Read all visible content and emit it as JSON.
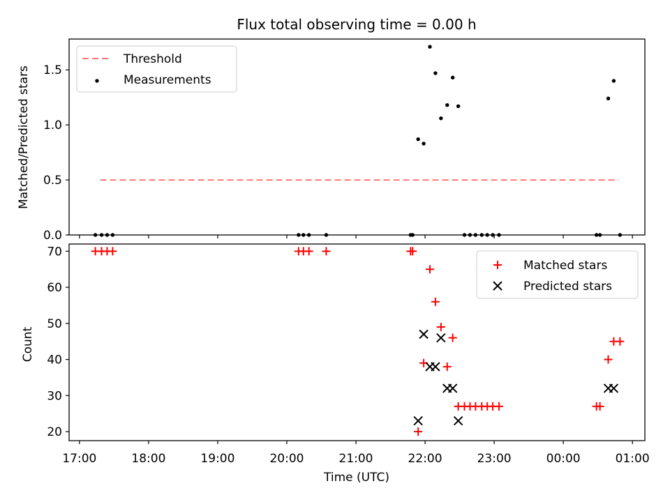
{
  "chart_data": [
    {
      "type": "scatter",
      "title": "Flux total observing time = 0.00 h",
      "xlabel": "",
      "ylabel": "Matched/Predicted stars",
      "ylim": [
        0,
        1.78
      ],
      "yticks": [
        "0.0",
        "0.5",
        "1.0",
        "1.5"
      ],
      "ytick_values": [
        0,
        0.5,
        1.0,
        1.5
      ],
      "legend_position": "top-left",
      "threshold": {
        "name": "Threshold",
        "value": 0.5,
        "x_start": 17.3,
        "x_end": 24.8,
        "color": "#ff7777"
      },
      "series": [
        {
          "name": "Measurements",
          "color": "#000000",
          "x": [
            17.23,
            17.32,
            17.4,
            17.48,
            20.17,
            20.24,
            20.32,
            20.57,
            21.79,
            21.82,
            21.9,
            21.98,
            22.07,
            22.15,
            22.23,
            22.32,
            22.4,
            22.48,
            22.57,
            22.65,
            22.73,
            22.82,
            22.9,
            22.98,
            23.07,
            24.48,
            24.53,
            24.65,
            24.73,
            24.82
          ],
          "y": [
            0,
            0,
            0,
            0,
            0,
            0,
            0,
            0,
            0,
            0,
            0.87,
            0.83,
            1.71,
            1.47,
            1.06,
            1.18,
            1.43,
            1.17,
            0,
            0,
            0,
            0,
            0,
            0,
            0,
            0,
            0,
            1.24,
            1.4,
            0
          ]
        }
      ]
    },
    {
      "type": "scatter",
      "title": "",
      "xlabel": "Time (UTC)",
      "ylabel": "Count",
      "ylim": [
        17.5,
        72
      ],
      "yticks": [
        "20",
        "30",
        "40",
        "50",
        "60",
        "70"
      ],
      "ytick_values": [
        20,
        30,
        40,
        50,
        60,
        70
      ],
      "xlim": [
        16.85,
        25.18
      ],
      "xticks": [
        "17:00",
        "18:00",
        "19:00",
        "20:00",
        "21:00",
        "22:00",
        "23:00",
        "00:00",
        "01:00"
      ],
      "xtick_values": [
        17,
        18,
        19,
        20,
        21,
        22,
        23,
        24,
        25
      ],
      "legend_position": "top-right",
      "series": [
        {
          "name": "Matched stars",
          "color": "#ff0000",
          "marker": "+",
          "x": [
            17.23,
            17.32,
            17.4,
            17.48,
            20.17,
            20.24,
            20.32,
            20.57,
            21.79,
            21.82,
            21.9,
            21.98,
            22.07,
            22.15,
            22.23,
            22.32,
            22.4,
            22.48,
            22.57,
            22.65,
            22.73,
            22.82,
            22.9,
            22.98,
            23.07,
            24.48,
            24.53,
            24.65,
            24.73,
            24.82
          ],
          "y": [
            70,
            70,
            70,
            70,
            70,
            70,
            70,
            70,
            70,
            70,
            20,
            39,
            65,
            56,
            49,
            38,
            46,
            27,
            27,
            27,
            27,
            27,
            27,
            27,
            27,
            27,
            27,
            40,
            45,
            45
          ]
        },
        {
          "name": "Predicted stars",
          "color": "#000000",
          "marker": "x",
          "x": [
            21.9,
            21.98,
            22.07,
            22.15,
            22.23,
            22.32,
            22.4,
            22.48,
            24.65,
            24.73
          ],
          "y": [
            23,
            47,
            38,
            38,
            46,
            32,
            32,
            23,
            32,
            32
          ]
        }
      ]
    }
  ]
}
